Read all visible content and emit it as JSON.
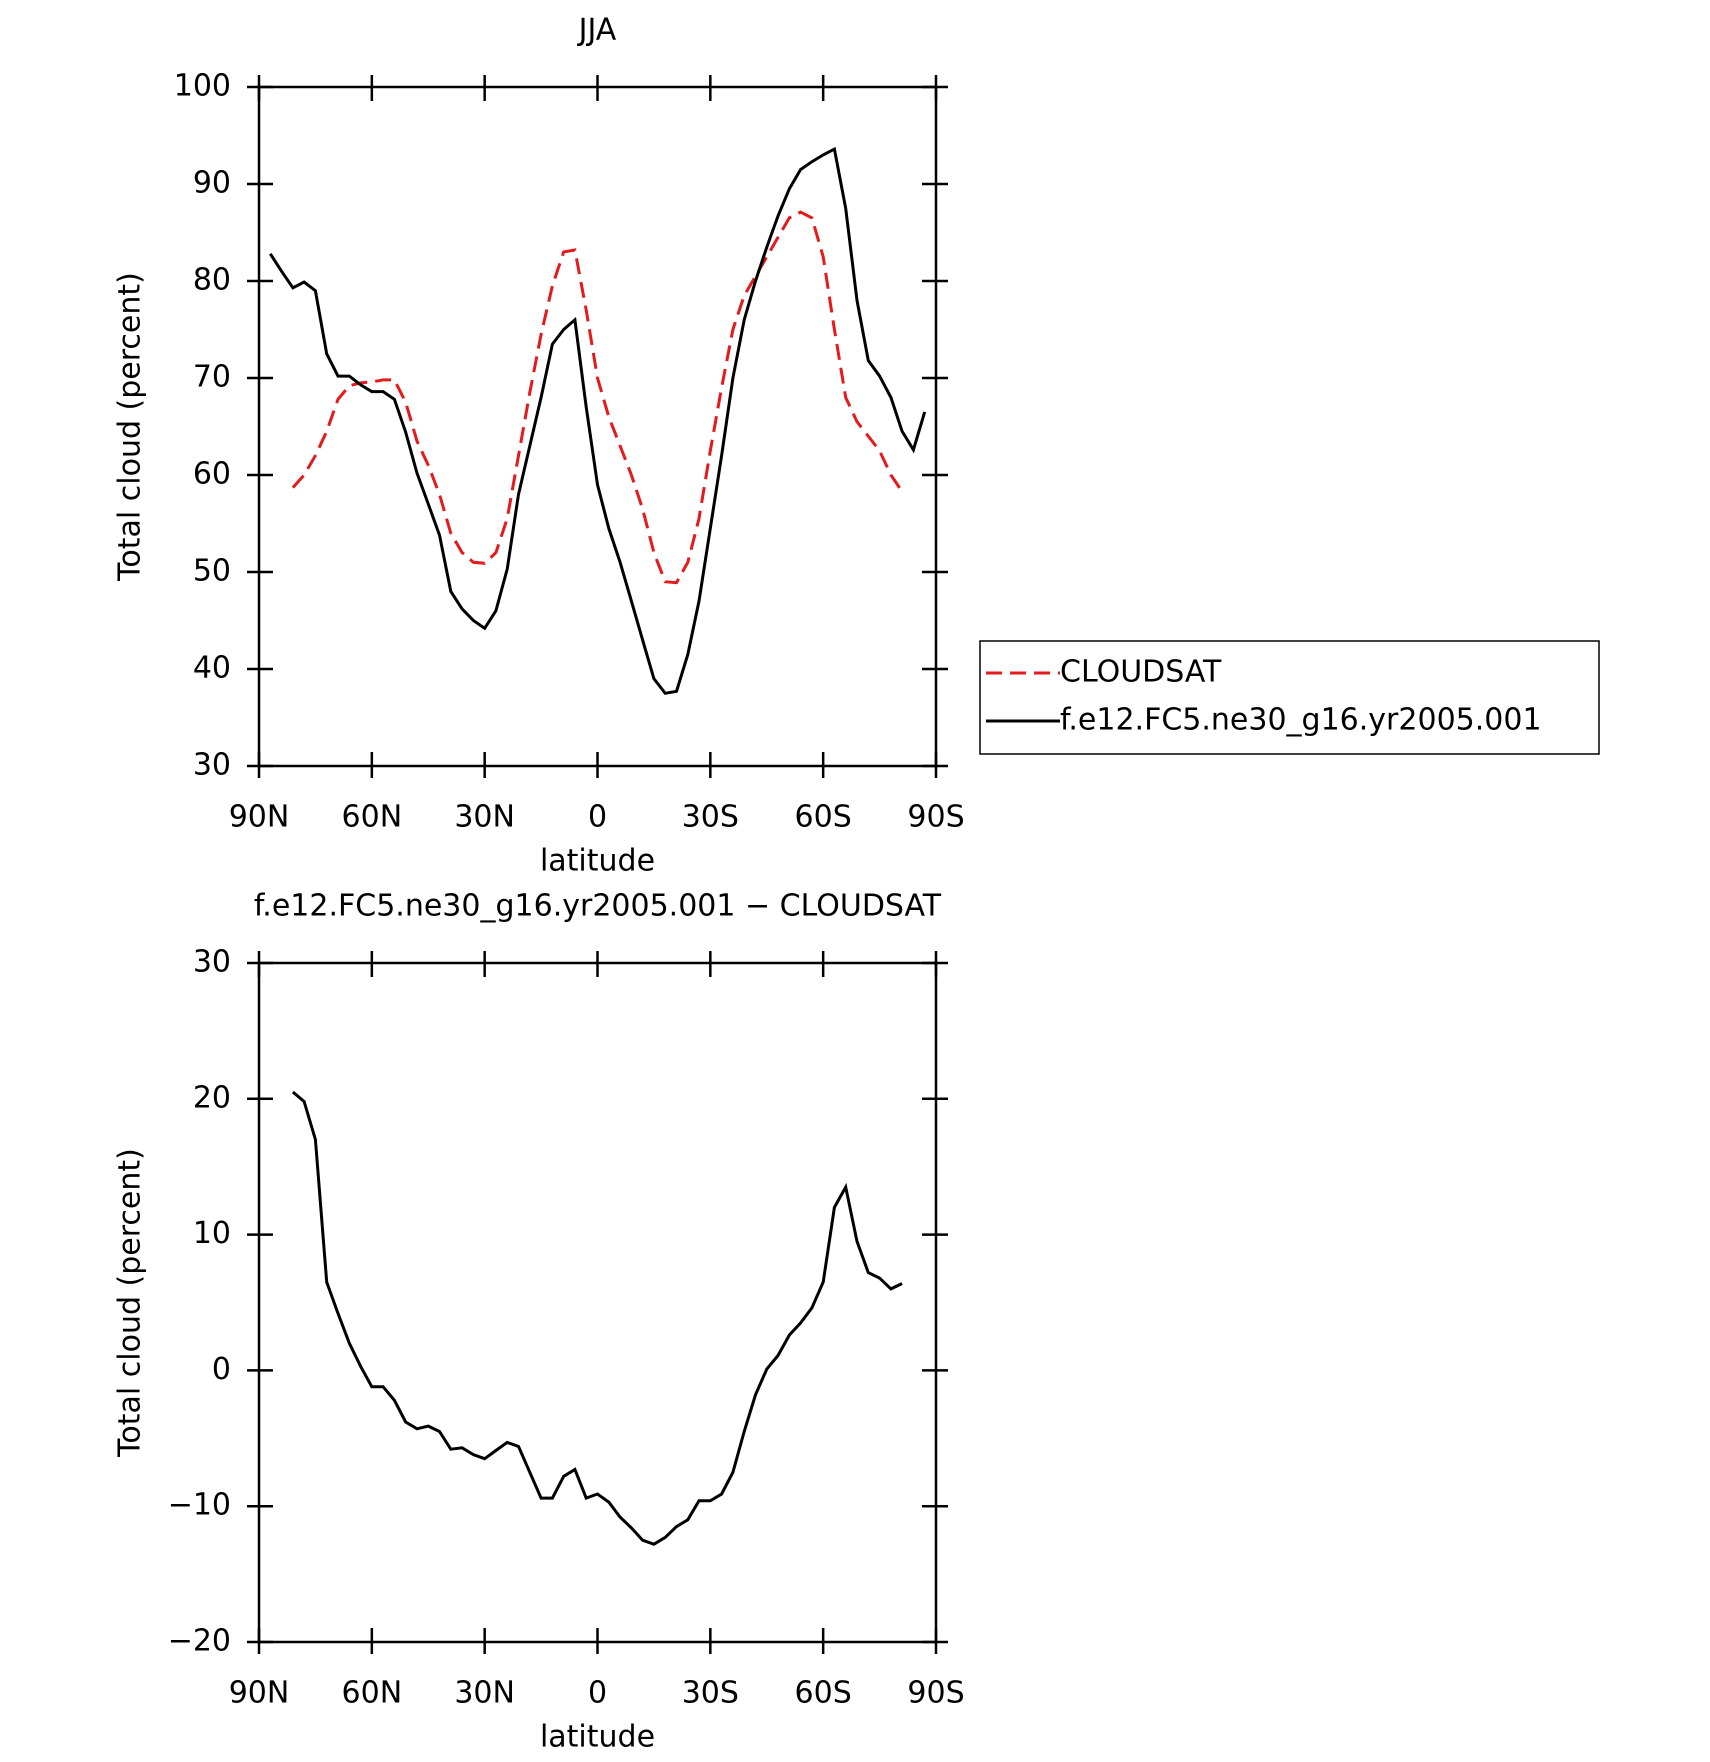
{
  "chart_data": [
    {
      "type": "line",
      "title": "JJA",
      "x_label": "latitude",
      "y_label": "Total cloud (percent)",
      "x": [
        87,
        84,
        81,
        78,
        75,
        72,
        69,
        66,
        63,
        60,
        57,
        54,
        51,
        48,
        45,
        42,
        39,
        36,
        33,
        30,
        27,
        24,
        21,
        18,
        15,
        12,
        9,
        6,
        3,
        0,
        -3,
        -6,
        -9,
        -12,
        -15,
        -18,
        -21,
        -24,
        -27,
        -30,
        -33,
        -36,
        -39,
        -42,
        -45,
        -48,
        -51,
        -54,
        -57,
        -60,
        -63,
        -66,
        -69,
        -72,
        -75,
        -78,
        -81,
        -84,
        -87
      ],
      "xlim": [
        90,
        -90
      ],
      "xticks": [
        {
          "value": 90,
          "label": "90N"
        },
        {
          "value": 60,
          "label": "60N"
        },
        {
          "value": 30,
          "label": "30N"
        },
        0,
        {
          "value": -30,
          "label": "30S"
        },
        {
          "value": -60,
          "label": "60S"
        },
        {
          "value": -90,
          "label": "90S"
        }
      ],
      "ylim": [
        30,
        100
      ],
      "yticks": [
        30,
        40,
        50,
        60,
        70,
        80,
        90,
        100
      ],
      "legend": "right",
      "series": [
        {
          "name": "CLOUDSAT",
          "color": "#e41a1c",
          "linestyle": "dashed",
          "values": [
            null,
            null,
            58.7,
            60.0,
            62.0,
            64.5,
            67.8,
            69.2,
            69.5,
            69.6,
            69.8,
            69.8,
            67.5,
            63.5,
            61.0,
            58.0,
            54.0,
            52.0,
            51.0,
            50.9,
            52.0,
            55.5,
            62.0,
            68.5,
            74.5,
            79.5,
            83.0,
            83.2,
            77.0,
            70.0,
            66.0,
            63.0,
            60.0,
            56.5,
            52.0,
            49.0,
            48.9,
            51.0,
            55.5,
            62.5,
            69.0,
            75.0,
            78.5,
            80.5,
            82.5,
            84.5,
            86.5,
            87.1,
            86.5,
            82.5,
            75.0,
            68.0,
            65.5,
            64.0,
            62.5,
            60.0,
            58.3,
            null,
            null
          ]
        },
        {
          "name": "f.e12.FC5.ne30_g16.yr2005.001",
          "color": "#000000",
          "linestyle": "solid",
          "values": [
            82.8,
            81.0,
            79.3,
            79.9,
            79.0,
            72.5,
            70.2,
            70.2,
            69.3,
            68.6,
            68.6,
            67.8,
            64.4,
            60.2,
            57.0,
            53.8,
            48.0,
            46.2,
            45.0,
            44.2,
            46.0,
            50.3,
            58.0,
            63.0,
            68.0,
            73.5,
            75.0,
            76.0,
            67.0,
            59.0,
            54.5,
            51.0,
            47.0,
            43.0,
            39.0,
            37.5,
            37.7,
            41.5,
            47.0,
            54.5,
            62.0,
            70.0,
            76.0,
            80.0,
            83.5,
            86.7,
            89.5,
            91.5,
            92.3,
            93.0,
            93.6,
            87.5,
            78.0,
            71.8,
            70.2,
            68.0,
            64.5,
            62.6,
            66.5
          ]
        }
      ]
    },
    {
      "type": "line",
      "title": "f.e12.FC5.ne30_g16.yr2005.001 − CLOUDSAT",
      "x_label": "latitude",
      "y_label": "Total cloud (percent)",
      "x": [
        81,
        78,
        75,
        72,
        69,
        66,
        63,
        60,
        57,
        54,
        51,
        48,
        45,
        42,
        39,
        36,
        33,
        30,
        27,
        24,
        21,
        18,
        15,
        12,
        9,
        6,
        3,
        0,
        -3,
        -6,
        -9,
        -12,
        -15,
        -18,
        -21,
        -24,
        -27,
        -30,
        -33,
        -36,
        -39,
        -42,
        -45,
        -48,
        -51,
        -54,
        -57,
        -60,
        -63,
        -66,
        -69,
        -72,
        -75,
        -78,
        -81
      ],
      "xlim": [
        90,
        -90
      ],
      "xticks": [
        {
          "value": 90,
          "label": "90N"
        },
        {
          "value": 60,
          "label": "60N"
        },
        {
          "value": 30,
          "label": "30N"
        },
        0,
        {
          "value": -30,
          "label": "30S"
        },
        {
          "value": -60,
          "label": "60S"
        },
        {
          "value": -90,
          "label": "90S"
        }
      ],
      "ylim": [
        -20,
        30
      ],
      "yticks": [
        {
          "value": -20,
          "label": "−20"
        },
        {
          "value": -10,
          "label": "−10"
        },
        0,
        10,
        20,
        30
      ],
      "series": [
        {
          "color": "#000000",
          "linestyle": "solid",
          "values": [
            20.5,
            19.8,
            17.0,
            6.5,
            4.2,
            2.0,
            0.3,
            -1.2,
            -1.2,
            -2.2,
            -3.8,
            -4.3,
            -4.1,
            -4.5,
            -5.8,
            -5.7,
            -6.2,
            -6.5,
            -5.9,
            -5.3,
            -5.6,
            -7.5,
            -9.4,
            -9.4,
            -7.8,
            -7.3,
            -9.4,
            -9.1,
            -9.7,
            -10.8,
            -11.6,
            -12.5,
            -12.8,
            -12.3,
            -11.5,
            -11.0,
            -9.6,
            -9.6,
            -9.1,
            -7.5,
            -4.5,
            -1.8,
            0.1,
            1.1,
            2.6,
            3.5,
            4.6,
            6.5,
            12.0,
            13.5,
            9.5,
            7.2,
            6.8,
            6.0,
            6.4
          ]
        }
      ]
    }
  ]
}
